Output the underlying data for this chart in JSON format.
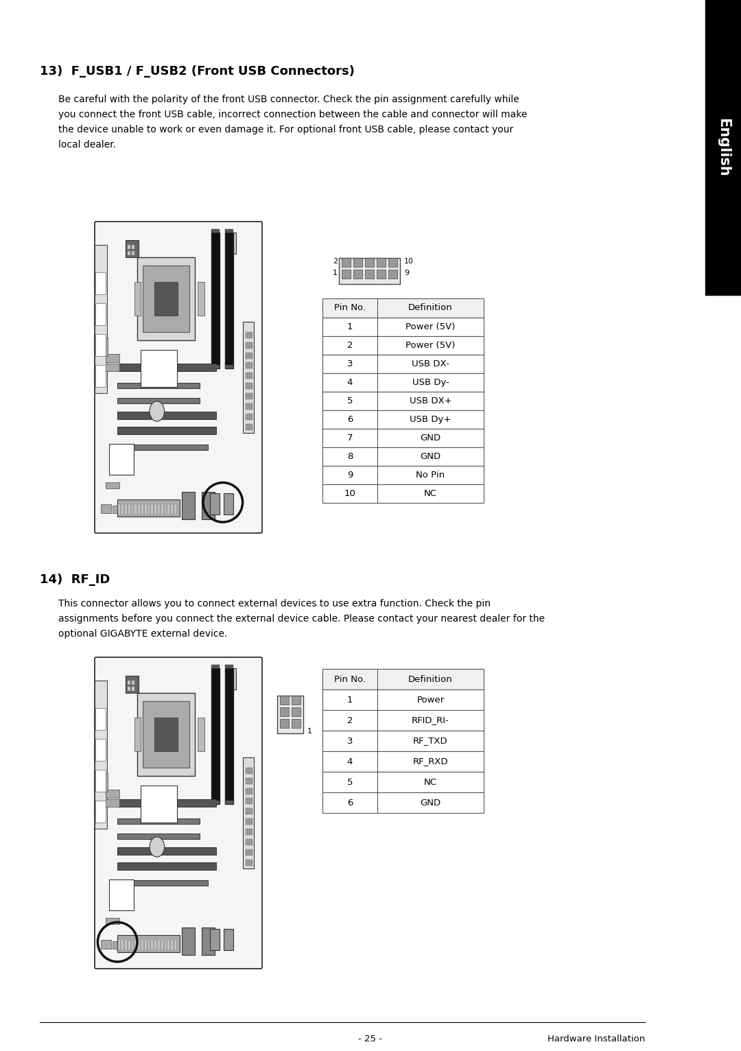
{
  "page_bg": "#ffffff",
  "sidebar_bg": "#000000",
  "section13_title": "13)  F_USB1 / F_USB2 (Front USB Connectors)",
  "section13_body_lines": [
    "Be careful with the polarity of the front USB connector. Check the pin assignment carefully while",
    "you connect the front USB cable, incorrect connection between the cable and connector will make",
    "the device unable to work or even damage it. For optional front USB cable, please contact your",
    "local dealer."
  ],
  "section14_title": "14)  RF_ID",
  "section14_body_lines": [
    "This connector allows you to connect external devices to use extra function. Check the pin",
    "assignments before you connect the external device cable. Please contact your nearest dealer for the",
    "optional GIGABYTE external device."
  ],
  "usb_table_headers": [
    "Pin No.",
    "Definition"
  ],
  "usb_table_rows": [
    [
      "1",
      "Power (5V)"
    ],
    [
      "2",
      "Power (5V)"
    ],
    [
      "3",
      "USB DX-"
    ],
    [
      "4",
      "USB Dy-"
    ],
    [
      "5",
      "USB DX+"
    ],
    [
      "6",
      "USB Dy+"
    ],
    [
      "7",
      "GND"
    ],
    [
      "8",
      "GND"
    ],
    [
      "9",
      "No Pin"
    ],
    [
      "10",
      "NC"
    ]
  ],
  "rfid_table_headers": [
    "Pin No.",
    "Definition"
  ],
  "rfid_table_rows": [
    [
      "1",
      "Power"
    ],
    [
      "2",
      "RFID_RI-"
    ],
    [
      "3",
      "RF_TXD"
    ],
    [
      "4",
      "RF_RXD"
    ],
    [
      "5",
      "NC"
    ],
    [
      "6",
      "GND"
    ]
  ],
  "footer_page": "- 25 -",
  "footer_right": "Hardware Installation",
  "font_size_title": 13,
  "font_size_body": 10,
  "font_size_table_hdr": 9.5,
  "font_size_table_row": 9.5,
  "font_size_footer": 9.5,
  "font_size_pin_label": 8
}
